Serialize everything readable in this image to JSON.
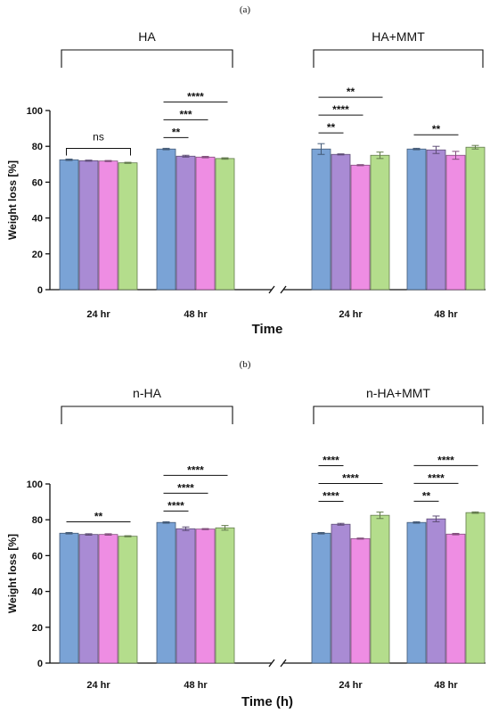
{
  "colors": [
    "#7aa3d6",
    "#a98bd4",
    "#ee8de3",
    "#b4dd8c"
  ],
  "chart_data": [
    {
      "type": "bar",
      "panel_label": "(a)",
      "ylabel": "Weight loss [%]",
      "xlabel": "Time",
      "ylim": [
        0,
        100
      ],
      "yticks": [
        0,
        20,
        40,
        60,
        80,
        100
      ],
      "groups": [
        {
          "label": "HA",
          "categories": [
            {
              "label": "24 hr",
              "values": [
                72.5,
                72.0,
                71.8,
                70.8
              ],
              "errors": [
                0.4,
                0.3,
                0.3,
                0.3
              ]
            },
            {
              "label": "48 hr",
              "values": [
                78.5,
                74.5,
                74.0,
                73.2
              ],
              "errors": [
                0.4,
                0.5,
                0.4,
                0.4
              ]
            }
          ]
        },
        {
          "label": "HA+MMT",
          "categories": [
            {
              "label": "24 hr",
              "values": [
                78.5,
                75.5,
                69.5,
                75.0
              ],
              "errors": [
                3.0,
                0.3,
                0.3,
                1.8
              ]
            },
            {
              "label": "48 hr",
              "values": [
                78.5,
                78.0,
                75.0,
                79.5
              ],
              "errors": [
                0.4,
                2.0,
                2.2,
                1.0
              ]
            }
          ]
        }
      ],
      "annotations": [
        {
          "group": 0,
          "category": 0,
          "from": 0,
          "to": 3,
          "text": "ns",
          "level": 0,
          "style": "bracket"
        },
        {
          "group": 0,
          "category": 1,
          "from": 0,
          "to": 1,
          "text": "**",
          "level": 0
        },
        {
          "group": 0,
          "category": 1,
          "from": 0,
          "to": 2,
          "text": "***",
          "level": 1
        },
        {
          "group": 0,
          "category": 1,
          "from": 0,
          "to": 3,
          "text": "****",
          "level": 2
        },
        {
          "group": 1,
          "category": 0,
          "from": 0,
          "to": 1,
          "text": "**",
          "level": 0
        },
        {
          "group": 1,
          "category": 0,
          "from": 0,
          "to": 2,
          "text": "****",
          "level": 1
        },
        {
          "group": 1,
          "category": 0,
          "from": 0,
          "to": 3,
          "text": "**",
          "level": 2
        },
        {
          "group": 1,
          "category": 1,
          "from": 0,
          "to": 2,
          "text": "**",
          "level": 0
        }
      ]
    },
    {
      "type": "bar",
      "panel_label": "(b)",
      "ylabel": "Weight loss [%]",
      "xlabel": "Time (h)",
      "ylim": [
        0,
        100
      ],
      "yticks": [
        0,
        20,
        40,
        60,
        80,
        100
      ],
      "groups": [
        {
          "label": "n-HA",
          "categories": [
            {
              "label": "24 hr",
              "values": [
                72.5,
                71.8,
                71.8,
                70.8
              ],
              "errors": [
                0.4,
                0.4,
                0.4,
                0.3
              ]
            },
            {
              "label": "48 hr",
              "values": [
                78.5,
                75.0,
                74.8,
                75.5
              ],
              "errors": [
                0.4,
                1.0,
                0.3,
                1.3
              ]
            }
          ]
        },
        {
          "label": "n-HA+MMT",
          "categories": [
            {
              "label": "24 hr",
              "values": [
                72.5,
                77.5,
                69.5,
                82.5
              ],
              "errors": [
                0.4,
                0.5,
                0.3,
                1.8
              ]
            },
            {
              "label": "48 hr",
              "values": [
                78.5,
                80.5,
                72.0,
                84.0
              ],
              "errors": [
                0.4,
                1.6,
                0.4,
                0.4
              ]
            }
          ]
        }
      ],
      "annotations": [
        {
          "group": 0,
          "category": 0,
          "from": 0,
          "to": 3,
          "text": "**",
          "level": 0
        },
        {
          "group": 0,
          "category": 1,
          "from": 0,
          "to": 1,
          "text": "****",
          "level": 0
        },
        {
          "group": 0,
          "category": 1,
          "from": 0,
          "to": 2,
          "text": "****",
          "level": 1
        },
        {
          "group": 0,
          "category": 1,
          "from": 0,
          "to": 3,
          "text": "****",
          "level": 2
        },
        {
          "group": 1,
          "category": 0,
          "from": 0,
          "to": 1,
          "text": "****",
          "level": 0
        },
        {
          "group": 1,
          "category": 0,
          "from": 0,
          "to": 3,
          "text": "****",
          "level": 1
        },
        {
          "group": 1,
          "category": 0,
          "from": 0,
          "to": 1,
          "text": "****",
          "level": 2
        },
        {
          "group": 1,
          "category": 1,
          "from": 0,
          "to": 1,
          "text": "**",
          "level": 0
        },
        {
          "group": 1,
          "category": 1,
          "from": 0,
          "to": 2,
          "text": "****",
          "level": 1
        },
        {
          "group": 1,
          "category": 1,
          "from": 0,
          "to": 3,
          "text": "****",
          "level": 2
        }
      ]
    }
  ]
}
